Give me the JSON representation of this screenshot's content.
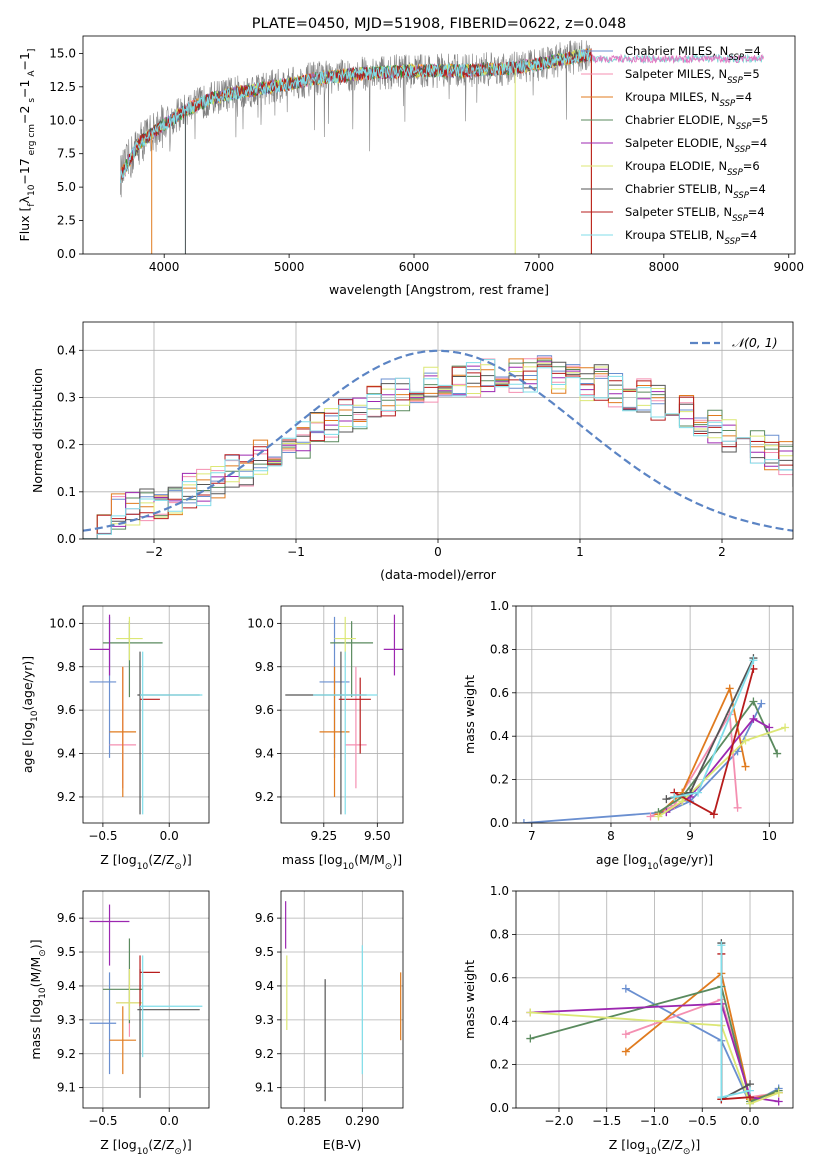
{
  "chart_data": [
    {
      "id": "spectrum",
      "type": "line",
      "title": "PLATE=0450, MJD=51908, FIBERID=0622, z=0.048",
      "xlabel": "wavelength [Angstrom, rest frame]",
      "ylabel_parts": [
        "Flux [",
        "f",
        "λ",
        "10",
        "−17",
        " erg cm",
        "−2",
        " s",
        "−1",
        " A",
        "−1",
        "]"
      ],
      "xlim": [
        3350,
        9050
      ],
      "ylim": [
        0,
        16.3
      ],
      "xticks": [
        4000,
        5000,
        6000,
        7000,
        8000,
        9000
      ],
      "yticks": [
        0.0,
        2.5,
        5.0,
        7.5,
        10.0,
        12.5,
        15.0
      ],
      "data_continuum": {
        "x": [
          3650,
          3800,
          4000,
          4200,
          4400,
          4600,
          4800,
          5000,
          5200,
          5400,
          5600,
          5800,
          6000,
          6200,
          6400,
          6600,
          6800,
          7000,
          7200,
          7400
        ],
        "y": [
          5.8,
          8.3,
          9.7,
          10.9,
          11.7,
          12.1,
          12.4,
          12.7,
          13.1,
          13.3,
          13.5,
          13.6,
          13.7,
          13.7,
          13.7,
          13.8,
          13.9,
          14.2,
          14.6,
          14.9
        ]
      },
      "model_color_order": [
        "#7fd6d6",
        "#e377c2",
        "#ff7f0e",
        "#2ca02c",
        "#9467bd",
        "#d4e157",
        "#555555",
        "#b71c1c",
        "#80deea"
      ],
      "legend": [
        {
          "label": "Chabrier MILES, N",
          "sub": "SSP",
          "count": "=4",
          "color": "#6a8fd0"
        },
        {
          "label": "Salpeter MILES, N",
          "sub": "SSP",
          "count": "=5",
          "color": "#f48fb1"
        },
        {
          "label": "Kroupa MILES, N",
          "sub": "SSP",
          "count": "=4",
          "color": "#e07b1f"
        },
        {
          "label": "Chabrier ELODIE, N",
          "sub": "SSP",
          "count": "=5",
          "color": "#5a8a5e"
        },
        {
          "label": "Salpeter ELODIE, N",
          "sub": "SSP",
          "count": "=4",
          "color": "#9c27b0"
        },
        {
          "label": "Kroupa ELODIE, N",
          "sub": "SSP",
          "count": "=6",
          "color": "#dce775"
        },
        {
          "label": "Chabrier STELIB, N",
          "sub": "SSP",
          "count": "=4",
          "color": "#555555"
        },
        {
          "label": "Salpeter STELIB, N",
          "sub": "SSP",
          "count": "=4",
          "color": "#b71c1c"
        },
        {
          "label": "Kroupa STELIB, N",
          "sub": "SSP",
          "count": "=4",
          "color": "#80deea"
        }
      ]
    },
    {
      "id": "residuals",
      "type": "histogram",
      "xlabel": "(data-model)/error",
      "ylabel": "Normed distribution",
      "xlim": [
        -2.5,
        2.5
      ],
      "ylim": [
        0,
        0.46
      ],
      "xticks": [
        -2,
        -1,
        0,
        1,
        2
      ],
      "yticks": [
        0.0,
        0.1,
        0.2,
        0.3,
        0.4
      ],
      "grid": true,
      "legend_label": "𝒩(0, 1)",
      "gaussian": {
        "mean": 0,
        "sigma": 1
      },
      "bins": {
        "start": -2.5,
        "width": 0.1
      },
      "hist_base": [
        0.04,
        0.05,
        0.06,
        0.06,
        0.07,
        0.08,
        0.09,
        0.1,
        0.11,
        0.12,
        0.14,
        0.15,
        0.17,
        0.18,
        0.2,
        0.21,
        0.23,
        0.24,
        0.26,
        0.27,
        0.29,
        0.3,
        0.31,
        0.32,
        0.33,
        0.33,
        0.34,
        0.34,
        0.35,
        0.35,
        0.35,
        0.35,
        0.35,
        0.34,
        0.34,
        0.33,
        0.33,
        0.32,
        0.31,
        0.3,
        0.29,
        0.28,
        0.27,
        0.25,
        0.24,
        0.22,
        0.21,
        0.2,
        0.18,
        0.17,
        0.15,
        0.14,
        0.13,
        0.12,
        0.11,
        0.1,
        0.09,
        0.08,
        0.07,
        0.06,
        0.05,
        0.05,
        0.04,
        0.04,
        0.04,
        0.03,
        0.03,
        0.03,
        0.03,
        0.03
      ],
      "series_colors": [
        "#6a8fd0",
        "#f48fb1",
        "#e07b1f",
        "#5a8a5e",
        "#9c27b0",
        "#dce775",
        "#555555",
        "#b71c1c",
        "#80deea"
      ]
    },
    {
      "id": "age-vs-Z",
      "type": "errorbar",
      "xlabel_parts": [
        "Z [log",
        "10",
        "(Z/Z",
        "⊙",
        ")]"
      ],
      "ylabel_parts": [
        "age  [log",
        "10",
        "(age/yr)]"
      ],
      "xlim": [
        -0.65,
        0.3
      ],
      "ylim": [
        9.08,
        10.08
      ],
      "xticks": [
        -0.5,
        0.0
      ],
      "yticks": [
        9.2,
        9.4,
        9.6,
        9.8,
        10.0
      ],
      "points": [
        {
          "x": -0.45,
          "xerr": [
            0.15,
            0.05
          ],
          "y": 9.73,
          "yerr": [
            0.35,
            0.3
          ],
          "color": "#6a8fd0"
        },
        {
          "x": -0.35,
          "xerr": [
            0.1,
            0.1
          ],
          "y": 9.44,
          "yerr": [
            0.2,
            0.36
          ],
          "color": "#f48fb1"
        },
        {
          "x": -0.35,
          "xerr": [
            0.1,
            0.1
          ],
          "y": 9.5,
          "yerr": [
            0.3,
            0.3
          ],
          "color": "#e07b1f"
        },
        {
          "x": -0.3,
          "xerr": [
            0.2,
            0.25
          ],
          "y": 9.91,
          "yerr": [
            0.25,
            0.1
          ],
          "color": "#5a8a5e"
        },
        {
          "x": -0.45,
          "xerr": [
            0.15,
            0.0
          ],
          "y": 9.88,
          "yerr": [
            0.12,
            0.16
          ],
          "color": "#9c27b0"
        },
        {
          "x": -0.3,
          "xerr": [
            0.1,
            0.1
          ],
          "y": 9.93,
          "yerr": [
            0.1,
            0.1
          ],
          "color": "#dce775"
        },
        {
          "x": -0.22,
          "xerr": [
            0.02,
            0.45
          ],
          "y": 9.67,
          "yerr": [
            0.55,
            0.2
          ],
          "color": "#555555"
        },
        {
          "x": -0.22,
          "xerr": [
            0.0,
            0.15
          ],
          "y": 9.65,
          "yerr": [
            0.0,
            0.0
          ],
          "color": "#b71c1c"
        },
        {
          "x": -0.2,
          "xerr": [
            0.02,
            0.45
          ],
          "y": 9.67,
          "yerr": [
            0.55,
            0.2
          ],
          "color": "#80deea"
        }
      ]
    },
    {
      "id": "age-vs-mass",
      "type": "errorbar",
      "xlabel_parts": [
        "mass [log",
        "10",
        "(M/M",
        "⊙",
        ")]"
      ],
      "xlim": [
        9.05,
        9.62
      ],
      "ylim": [
        9.08,
        10.08
      ],
      "xticks": [
        9.25,
        9.5
      ],
      "yticks": [
        9.2,
        9.4,
        9.6,
        9.8,
        10.0
      ],
      "points": [
        {
          "x": 9.3,
          "xerr": [
            0.07,
            0.07
          ],
          "y": 9.73,
          "yerr": [
            0.35,
            0.3
          ],
          "color": "#6a8fd0"
        },
        {
          "x": 9.4,
          "xerr": [
            0.05,
            0.05
          ],
          "y": 9.44,
          "yerr": [
            0.2,
            0.36
          ],
          "color": "#f48fb1"
        },
        {
          "x": 9.3,
          "xerr": [
            0.07,
            0.07
          ],
          "y": 9.5,
          "yerr": [
            0.3,
            0.3
          ],
          "color": "#e07b1f"
        },
        {
          "x": 9.38,
          "xerr": [
            0.1,
            0.1
          ],
          "y": 9.91,
          "yerr": [
            0.25,
            0.1
          ],
          "color": "#5a8a5e"
        },
        {
          "x": 9.58,
          "xerr": [
            0.05,
            0.05
          ],
          "y": 9.88,
          "yerr": [
            0.12,
            0.16
          ],
          "color": "#9c27b0"
        },
        {
          "x": 9.35,
          "xerr": [
            0.05,
            0.05
          ],
          "y": 9.93,
          "yerr": [
            0.1,
            0.1
          ],
          "color": "#dce775"
        },
        {
          "x": 9.33,
          "xerr": [
            0.26,
            0.12
          ],
          "y": 9.67,
          "yerr": [
            0.55,
            0.2
          ],
          "color": "#555555"
        },
        {
          "x": 9.42,
          "xerr": [
            0.1,
            0.05
          ],
          "y": 9.65,
          "yerr": [
            0.25,
            0.1
          ],
          "color": "#b71c1c"
        },
        {
          "x": 9.35,
          "xerr": [
            0.15,
            0.15
          ],
          "y": 9.67,
          "yerr": [
            0.55,
            0.2
          ],
          "color": "#80deea"
        }
      ]
    },
    {
      "id": "massweight-vs-age",
      "type": "line",
      "xlabel_parts": [
        "age  [log",
        "10",
        "(age/yr)]"
      ],
      "ylabel": "mass weight",
      "xlim": [
        6.8,
        10.3
      ],
      "ylim": [
        0,
        1.0
      ],
      "xticks": [
        7,
        8,
        9,
        10
      ],
      "yticks": [
        0.0,
        0.2,
        0.4,
        0.6,
        0.8,
        1.0
      ],
      "grid": true,
      "series": [
        {
          "color": "#6a8fd0",
          "x": [
            6.9,
            8.7,
            9.0,
            9.6,
            9.9
          ],
          "y": [
            0.0,
            0.05,
            0.1,
            0.33,
            0.55
          ]
        },
        {
          "color": "#f48fb1",
          "x": [
            8.5,
            8.8,
            9.5,
            9.6
          ],
          "y": [
            0.03,
            0.08,
            0.5,
            0.07
          ]
        },
        {
          "color": "#e07b1f",
          "x": [
            8.6,
            8.9,
            9.5,
            9.7
          ],
          "y": [
            0.04,
            0.14,
            0.62,
            0.26
          ]
        },
        {
          "color": "#5a8a5e",
          "x": [
            8.6,
            8.9,
            9.8,
            10.1
          ],
          "y": [
            0.05,
            0.12,
            0.56,
            0.32
          ]
        },
        {
          "color": "#9c27b0",
          "x": [
            8.7,
            9.0,
            9.8,
            10.0
          ],
          "y": [
            0.05,
            0.12,
            0.48,
            0.44
          ]
        },
        {
          "color": "#dce775",
          "x": [
            8.6,
            8.9,
            9.7,
            10.2
          ],
          "y": [
            0.03,
            0.1,
            0.38,
            0.44
          ]
        },
        {
          "color": "#555555",
          "x": [
            8.7,
            9.0,
            9.8
          ],
          "y": [
            0.11,
            0.14,
            0.76
          ]
        },
        {
          "color": "#b71c1c",
          "x": [
            8.8,
            9.3,
            9.8
          ],
          "y": [
            0.14,
            0.04,
            0.71
          ]
        },
        {
          "color": "#80deea",
          "x": [
            8.8,
            9.1,
            9.8
          ],
          "y": [
            0.12,
            0.14,
            0.75
          ]
        }
      ]
    },
    {
      "id": "mass-vs-Z",
      "type": "errorbar",
      "xlabel_parts": [
        "Z [log",
        "10",
        "(Z/Z",
        "⊙",
        ")]"
      ],
      "ylabel_parts": [
        "mass [log",
        "10",
        "(M/M",
        "⊙",
        ")]"
      ],
      "xlim": [
        -0.65,
        0.3
      ],
      "ylim": [
        9.04,
        9.68
      ],
      "xticks": [
        -0.5,
        0.0
      ],
      "yticks": [
        9.1,
        9.2,
        9.3,
        9.4,
        9.5,
        9.6
      ],
      "points": [
        {
          "x": -0.45,
          "xerr": [
            0.15,
            0.05
          ],
          "y": 9.29,
          "yerr": [
            0.15,
            0.15
          ],
          "color": "#6a8fd0"
        },
        {
          "x": -0.3,
          "xerr": [
            0.1,
            0.1
          ],
          "y": 9.35,
          "yerr": [
            0.1,
            0.1
          ],
          "color": "#f48fb1"
        },
        {
          "x": -0.35,
          "xerr": [
            0.1,
            0.1
          ],
          "y": 9.24,
          "yerr": [
            0.1,
            0.1
          ],
          "color": "#e07b1f"
        },
        {
          "x": -0.3,
          "xerr": [
            0.2,
            0.1
          ],
          "y": 9.39,
          "yerr": [
            0.1,
            0.15
          ],
          "color": "#5a8a5e"
        },
        {
          "x": -0.45,
          "xerr": [
            0.15,
            0.15
          ],
          "y": 9.59,
          "yerr": [
            0.13,
            0.05
          ],
          "color": "#9c27b0"
        },
        {
          "x": -0.3,
          "xerr": [
            0.1,
            0.1
          ],
          "y": 9.35,
          "yerr": [
            0.05,
            0.1
          ],
          "color": "#dce775"
        },
        {
          "x": -0.22,
          "xerr": [
            0.02,
            0.45
          ],
          "y": 9.33,
          "yerr": [
            0.26,
            0.12
          ],
          "color": "#555555"
        },
        {
          "x": -0.22,
          "xerr": [
            0.0,
            0.15
          ],
          "y": 9.44,
          "yerr": [
            0.1,
            0.05
          ],
          "color": "#b71c1c"
        },
        {
          "x": -0.2,
          "xerr": [
            0.02,
            0.45
          ],
          "y": 9.34,
          "yerr": [
            0.15,
            0.15
          ],
          "color": "#80deea"
        }
      ]
    },
    {
      "id": "mass-vs-EBV",
      "type": "errorbar",
      "xlabel": "E(B-V)",
      "xlim": [
        0.283,
        0.2935
      ],
      "ylim": [
        9.04,
        9.68
      ],
      "xticks": [
        0.285,
        0.29
      ],
      "xtick_labels": [
        "0.285",
        "0.290"
      ],
      "yticks": [
        9.1,
        9.2,
        9.3,
        9.4,
        9.5,
        9.6
      ],
      "points": [
        {
          "x": 0.2834,
          "xerr": [
            0,
            0
          ],
          "y": 9.58,
          "yerr": [
            0.07,
            0.07
          ],
          "color": "#9c27b0"
        },
        {
          "x": 0.2835,
          "xerr": [
            0,
            0
          ],
          "y": 9.38,
          "yerr": [
            0.11,
            0.11
          ],
          "color": "#dce775"
        },
        {
          "x": 0.2868,
          "xerr": [
            0,
            0
          ],
          "y": 9.24,
          "yerr": [
            0.18,
            0.18
          ],
          "color": "#555555"
        },
        {
          "x": 0.29,
          "xerr": [
            0,
            0
          ],
          "y": 9.33,
          "yerr": [
            0.19,
            0.19
          ],
          "color": "#80deea"
        },
        {
          "x": 0.2933,
          "xerr": [
            0,
            0
          ],
          "y": 9.34,
          "yerr": [
            0.1,
            0.1
          ],
          "color": "#e07b1f"
        }
      ]
    },
    {
      "id": "massweight-vs-Z",
      "type": "line",
      "xlabel_parts": [
        "Z [log",
        "10",
        "(Z/Z",
        "⊙",
        ")]"
      ],
      "ylabel": "mass weight",
      "xlim": [
        -2.45,
        0.45
      ],
      "ylim": [
        0,
        1.0
      ],
      "xticks": [
        -2.0,
        -1.5,
        -1.0,
        -0.5,
        0.0
      ],
      "yticks": [
        0.0,
        0.2,
        0.4,
        0.6,
        0.8,
        1.0
      ],
      "grid": true,
      "series": [
        {
          "color": "#6a8fd0",
          "x": [
            -1.3,
            -0.3,
            0.0,
            0.3
          ],
          "y": [
            0.55,
            0.31,
            0.02,
            0.09
          ]
        },
        {
          "color": "#f48fb1",
          "x": [
            -1.3,
            -0.3,
            0.0,
            0.3
          ],
          "y": [
            0.34,
            0.5,
            0.05,
            0.07
          ]
        },
        {
          "color": "#e07b1f",
          "x": [
            -1.3,
            -0.3,
            0.0,
            0.3
          ],
          "y": [
            0.26,
            0.62,
            0.04,
            0.07
          ]
        },
        {
          "color": "#5a8a5e",
          "x": [
            -2.3,
            -0.3,
            0.0,
            0.3
          ],
          "y": [
            0.32,
            0.56,
            0.03,
            0.08
          ]
        },
        {
          "color": "#9c27b0",
          "x": [
            -2.3,
            -0.3,
            0.0,
            0.3
          ],
          "y": [
            0.44,
            0.48,
            0.05,
            0.03
          ]
        },
        {
          "color": "#dce775",
          "x": [
            -2.3,
            -0.3,
            0.0,
            0.3
          ],
          "y": [
            0.44,
            0.38,
            0.02,
            0.07
          ]
        },
        {
          "color": "#555555",
          "x": [
            -0.3,
            -0.3,
            0.0
          ],
          "y": [
            0.76,
            0.04,
            0.11
          ]
        },
        {
          "color": "#b71c1c",
          "x": [
            -0.3,
            -0.3,
            0.0
          ],
          "y": [
            0.71,
            0.04,
            0.05
          ]
        },
        {
          "color": "#80deea",
          "x": [
            -0.3,
            -0.3,
            0.0
          ],
          "y": [
            0.75,
            0.05,
            0.08
          ]
        }
      ]
    }
  ]
}
